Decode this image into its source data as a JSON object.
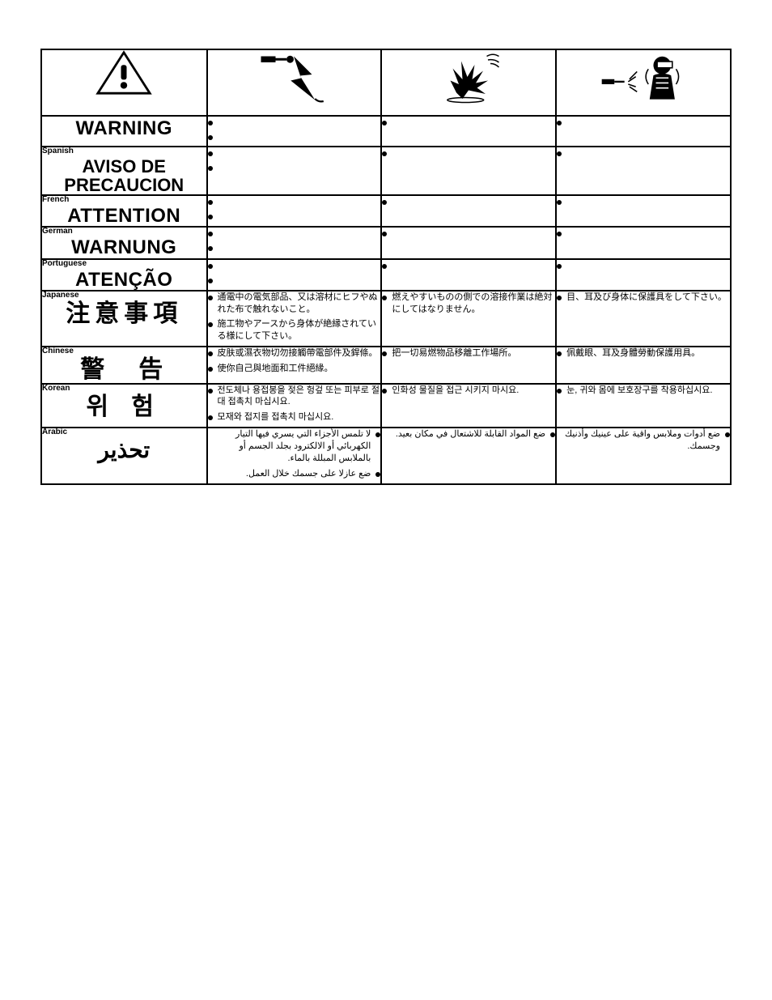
{
  "colors": {
    "border": "#000000",
    "background": "#ffffff",
    "text": "#000000"
  },
  "icons": [
    "warning-triangle",
    "electric-shock",
    "fire-explosion",
    "eye-ear-body"
  ],
  "rows": [
    {
      "id": "english",
      "tag": "",
      "title": "WARNING",
      "title_class": "xl",
      "cells": [
        {
          "bullets": [
            "",
            ""
          ]
        },
        {
          "bullets": [
            ""
          ]
        },
        {
          "bullets": [
            ""
          ]
        }
      ]
    },
    {
      "id": "spanish",
      "tag": "Spanish",
      "title": "AVISO DE\nPRECAUCION",
      "title_class": "lg",
      "cells": [
        {
          "bullets": [
            "",
            ""
          ]
        },
        {
          "bullets": [
            ""
          ]
        },
        {
          "bullets": [
            ""
          ]
        }
      ]
    },
    {
      "id": "french",
      "tag": "French",
      "title": "ATTENTION",
      "title_class": "xl",
      "cells": [
        {
          "bullets": [
            "",
            ""
          ]
        },
        {
          "bullets": [
            ""
          ]
        },
        {
          "bullets": [
            ""
          ]
        }
      ]
    },
    {
      "id": "german",
      "tag": "German",
      "title": "WARNUNG",
      "title_class": "xl",
      "cells": [
        {
          "bullets": [
            "",
            ""
          ]
        },
        {
          "bullets": [
            ""
          ]
        },
        {
          "bullets": [
            ""
          ]
        }
      ]
    },
    {
      "id": "portuguese",
      "tag": "Portuguese",
      "title": "ATENÇÃO",
      "title_class": "xl",
      "cells": [
        {
          "bullets": [
            "",
            ""
          ]
        },
        {
          "bullets": [
            ""
          ]
        },
        {
          "bullets": [
            ""
          ]
        }
      ]
    },
    {
      "id": "japanese",
      "tag": "Japanese",
      "title": "注意事項",
      "title_class": "cjk",
      "cells": [
        {
          "bullets": [
            "通電中の電気部品、又は溶材にヒフやぬれた布で触れないこと。",
            "施工物やアースから身体が絶縁されている様にして下さい。"
          ]
        },
        {
          "bullets": [
            "燃えやすいものの側での溶接作業は絶対にしてはなりません。"
          ]
        },
        {
          "bullets": [
            "目、耳及び身体に保護具をして下さい。"
          ]
        }
      ]
    },
    {
      "id": "chinese",
      "tag": "Chinese",
      "title": "警　告",
      "title_class": "cjk",
      "cells": [
        {
          "bullets": [
            "皮肤或濕衣物切勿接觸帶電部件及銲條。",
            "使你自己與地面和工件絕緣。"
          ]
        },
        {
          "bullets": [
            "把一切易燃物品移離工作場所。"
          ]
        },
        {
          "bullets": [
            "佩戴眼、耳及身體勞動保護用具。"
          ]
        }
      ]
    },
    {
      "id": "korean",
      "tag": "Korean",
      "title": "위 험",
      "title_class": "kr",
      "cells": [
        {
          "bullets": [
            "전도체나 용접봉을 젖은 헝겊 또는 피부로 절대 접촉치 마십시요.",
            "모재와 접지를 접촉치 마십시요."
          ]
        },
        {
          "bullets": [
            "인화성 물질을 접근 시키지 마시요."
          ]
        },
        {
          "bullets": [
            "눈, 귀와 몸에 보호장구를 착용하십시요."
          ]
        }
      ]
    },
    {
      "id": "arabic",
      "tag": "Arabic",
      "title": "تحذير",
      "title_class": "ar",
      "rtl": true,
      "cells": [
        {
          "bullets": [
            "لا تلمس الأجزاء التي يسري فيها التيار الكهربائي أو الالكترود بجلد الجسم أو بالملابس المبللة بالماء.",
            "ضع عازلا على جسمك خلال العمل."
          ]
        },
        {
          "bullets": [
            "ضع المواد القابلة للاشتعال في مكان بعيد."
          ]
        },
        {
          "bullets": [
            "ضع أدوات وملابس واقية على عينيك وأذنيك وجسمك."
          ]
        }
      ]
    }
  ]
}
